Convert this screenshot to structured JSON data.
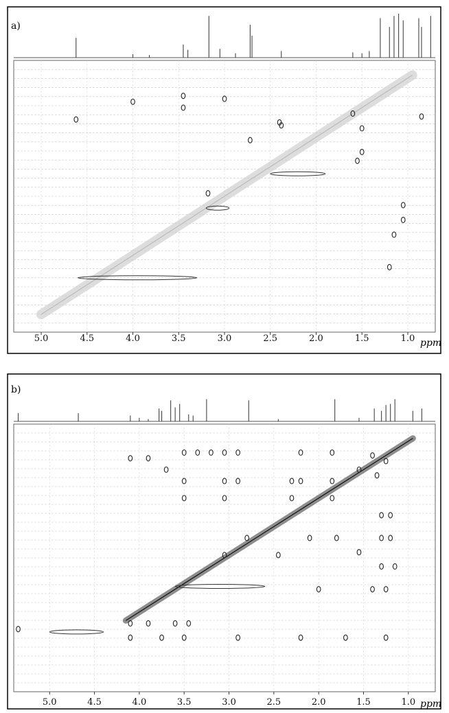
{
  "chart_data": [
    {
      "type": "scatter",
      "panel_label": "a)",
      "xlabel": "ppm",
      "xlim": [
        5.3,
        0.7
      ],
      "ylim": [
        5.3,
        0.7
      ],
      "x_ticks": [
        5.0,
        4.5,
        4.0,
        3.5,
        3.0,
        2.5,
        2.0,
        1.5,
        1.0
      ],
      "x_tick_labels": [
        "5.0",
        "4.5",
        "4.0",
        "3.5",
        "3.0",
        "2.5",
        "2.0",
        "1.5",
        "1.0"
      ],
      "grid": true,
      "projection_peaks": [
        {
          "x": 4.62,
          "h": 0.45
        },
        {
          "x": 4.0,
          "h": 0.08
        },
        {
          "x": 3.82,
          "h": 0.06
        },
        {
          "x": 3.45,
          "h": 0.3
        },
        {
          "x": 3.4,
          "h": 0.18
        },
        {
          "x": 3.17,
          "h": 0.95
        },
        {
          "x": 3.05,
          "h": 0.2
        },
        {
          "x": 2.88,
          "h": 0.1
        },
        {
          "x": 2.72,
          "h": 0.75
        },
        {
          "x": 2.7,
          "h": 0.5
        },
        {
          "x": 2.38,
          "h": 0.15
        },
        {
          "x": 1.6,
          "h": 0.12
        },
        {
          "x": 1.5,
          "h": 0.1
        },
        {
          "x": 1.42,
          "h": 0.15
        },
        {
          "x": 1.3,
          "h": 0.9
        },
        {
          "x": 1.2,
          "h": 0.7
        },
        {
          "x": 1.15,
          "h": 0.95
        },
        {
          "x": 1.1,
          "h": 1.0
        },
        {
          "x": 1.05,
          "h": 0.85
        },
        {
          "x": 0.88,
          "h": 0.9
        },
        {
          "x": 0.85,
          "h": 0.7
        },
        {
          "x": 0.75,
          "h": 0.95
        }
      ],
      "cross_peaks": [
        {
          "x": 3.45,
          "y": 1.3
        },
        {
          "x": 3.45,
          "y": 1.5
        },
        {
          "x": 3.0,
          "y": 1.35
        },
        {
          "x": 2.4,
          "y": 1.75
        },
        {
          "x": 2.38,
          "y": 1.8
        },
        {
          "x": 1.5,
          "y": 1.85
        },
        {
          "x": 1.5,
          "y": 2.25
        },
        {
          "x": 1.05,
          "y": 3.15
        },
        {
          "x": 1.05,
          "y": 3.4
        },
        {
          "x": 1.15,
          "y": 3.65
        },
        {
          "x": 1.6,
          "y": 1.6
        },
        {
          "x": 0.85,
          "y": 1.65
        },
        {
          "x": 3.18,
          "y": 2.95
        },
        {
          "x": 2.72,
          "y": 2.05
        },
        {
          "x": 1.55,
          "y": 2.4
        },
        {
          "x": 4.0,
          "y": 1.4
        },
        {
          "x": 4.62,
          "y": 1.7
        },
        {
          "x": 1.2,
          "y": 4.2
        }
      ],
      "diagonal_range": [
        5.0,
        0.95
      ],
      "line_features": [
        {
          "x_from": 2.5,
          "x_to": 1.9,
          "y": 2.62
        },
        {
          "x_from": 4.6,
          "x_to": 3.3,
          "y": 4.38
        },
        {
          "x_from": 3.2,
          "x_to": 2.95,
          "y": 3.2
        }
      ]
    },
    {
      "type": "scatter",
      "panel_label": "b)",
      "xlabel": "ppm",
      "xlim": [
        5.4,
        0.7
      ],
      "ylim": [
        5.4,
        0.7
      ],
      "x_ticks": [
        5.0,
        4.5,
        4.0,
        3.5,
        3.0,
        2.5,
        2.0,
        1.5,
        1.0
      ],
      "x_tick_labels": [
        "5.0",
        "4.5",
        "4.0",
        "3.5",
        "3.0",
        "2.5",
        "2.0",
        "1.5",
        "1.0"
      ],
      "grid": true,
      "projection_peaks": [
        {
          "x": 5.35,
          "h": 0.35
        },
        {
          "x": 4.68,
          "h": 0.35
        },
        {
          "x": 4.1,
          "h": 0.25
        },
        {
          "x": 4.0,
          "h": 0.15
        },
        {
          "x": 3.9,
          "h": 0.1
        },
        {
          "x": 3.78,
          "h": 0.55
        },
        {
          "x": 3.75,
          "h": 0.45
        },
        {
          "x": 3.65,
          "h": 0.9
        },
        {
          "x": 3.6,
          "h": 0.6
        },
        {
          "x": 3.55,
          "h": 0.75
        },
        {
          "x": 3.45,
          "h": 0.3
        },
        {
          "x": 3.4,
          "h": 0.25
        },
        {
          "x": 3.25,
          "h": 0.95
        },
        {
          "x": 2.78,
          "h": 0.9
        },
        {
          "x": 2.45,
          "h": 0.1
        },
        {
          "x": 1.82,
          "h": 0.95
        },
        {
          "x": 1.55,
          "h": 0.15
        },
        {
          "x": 1.38,
          "h": 0.55
        },
        {
          "x": 1.3,
          "h": 0.45
        },
        {
          "x": 1.25,
          "h": 0.7
        },
        {
          "x": 1.2,
          "h": 0.75
        },
        {
          "x": 1.15,
          "h": 0.95
        },
        {
          "x": 0.95,
          "h": 0.45
        },
        {
          "x": 0.85,
          "h": 0.55
        }
      ],
      "cross_peaks": [
        {
          "x": 4.1,
          "y": 1.3
        },
        {
          "x": 3.9,
          "y": 1.3
        },
        {
          "x": 3.7,
          "y": 1.5
        },
        {
          "x": 3.5,
          "y": 1.2
        },
        {
          "x": 3.35,
          "y": 1.2
        },
        {
          "x": 3.2,
          "y": 1.2
        },
        {
          "x": 3.05,
          "y": 1.2
        },
        {
          "x": 2.9,
          "y": 1.2
        },
        {
          "x": 2.2,
          "y": 1.2
        },
        {
          "x": 1.85,
          "y": 1.2
        },
        {
          "x": 3.5,
          "y": 1.7
        },
        {
          "x": 3.05,
          "y": 1.7
        },
        {
          "x": 2.9,
          "y": 1.7
        },
        {
          "x": 2.2,
          "y": 1.7
        },
        {
          "x": 1.85,
          "y": 1.7
        },
        {
          "x": 1.3,
          "y": 2.3
        },
        {
          "x": 1.2,
          "y": 2.3
        },
        {
          "x": 1.3,
          "y": 2.7
        },
        {
          "x": 1.2,
          "y": 2.7
        },
        {
          "x": 1.15,
          "y": 3.2
        },
        {
          "x": 1.4,
          "y": 3.6
        },
        {
          "x": 1.25,
          "y": 3.6
        },
        {
          "x": 2.0,
          "y": 3.6
        },
        {
          "x": 2.1,
          "y": 2.7
        },
        {
          "x": 1.8,
          "y": 2.7
        },
        {
          "x": 2.3,
          "y": 1.7
        },
        {
          "x": 3.5,
          "y": 2.0
        },
        {
          "x": 3.05,
          "y": 2.0
        },
        {
          "x": 2.3,
          "y": 2.0
        },
        {
          "x": 1.85,
          "y": 2.0
        },
        {
          "x": 4.1,
          "y": 4.2
        },
        {
          "x": 3.9,
          "y": 4.2
        },
        {
          "x": 3.6,
          "y": 4.2
        },
        {
          "x": 3.45,
          "y": 4.2
        },
        {
          "x": 4.1,
          "y": 4.45
        },
        {
          "x": 3.75,
          "y": 4.45
        },
        {
          "x": 3.5,
          "y": 4.45
        },
        {
          "x": 2.9,
          "y": 4.45
        },
        {
          "x": 2.2,
          "y": 4.45
        },
        {
          "x": 1.7,
          "y": 4.45
        },
        {
          "x": 1.25,
          "y": 4.45
        },
        {
          "x": 5.35,
          "y": 4.3
        },
        {
          "x": 3.05,
          "y": 3.0
        },
        {
          "x": 2.8,
          "y": 2.7
        },
        {
          "x": 2.45,
          "y": 3.0
        },
        {
          "x": 1.55,
          "y": 2.95
        },
        {
          "x": 1.3,
          "y": 3.2
        },
        {
          "x": 1.4,
          "y": 1.25
        },
        {
          "x": 1.55,
          "y": 1.5
        },
        {
          "x": 1.35,
          "y": 1.6
        },
        {
          "x": 1.25,
          "y": 1.35
        }
      ],
      "diagonal_range": [
        4.15,
        0.95
      ],
      "line_features": [
        {
          "x_from": 5.0,
          "x_to": 4.4,
          "y": 4.35
        },
        {
          "x_from": 3.6,
          "x_to": 2.6,
          "y": 3.55
        }
      ]
    }
  ]
}
